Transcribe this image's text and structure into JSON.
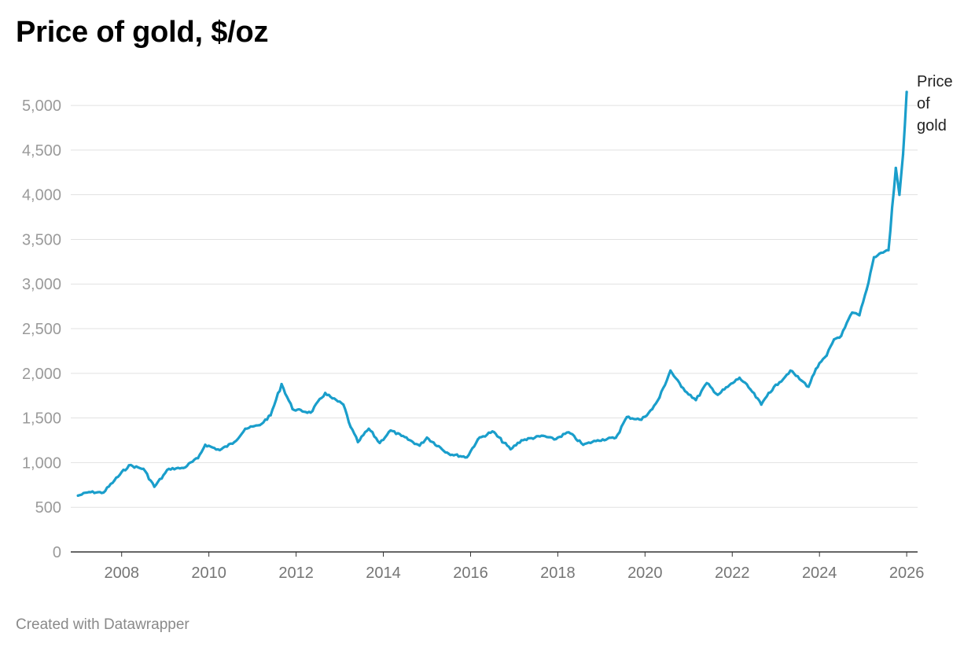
{
  "title": "Price of gold, $/oz",
  "footer": "Created with Datawrapper",
  "colors": {
    "line": "#1a9ecb",
    "grid": "#e1e1e1",
    "axis": "#333333"
  },
  "chart_data": {
    "type": "line",
    "title": "Price of gold, $/oz",
    "xlabel": "",
    "ylabel": "",
    "xlim": [
      "2006-11-01",
      "2026-04-01"
    ],
    "ylim": [
      0,
      5300
    ],
    "x_ticks": [
      "2008",
      "2010",
      "2012",
      "2014",
      "2016",
      "2018",
      "2020",
      "2022",
      "2024",
      "2026"
    ],
    "y_ticks": [
      {
        "value": 0,
        "label": "0"
      },
      {
        "value": 500,
        "label": "500"
      },
      {
        "value": 1000,
        "label": "1,000"
      },
      {
        "value": 1500,
        "label": "1,500"
      },
      {
        "value": 2000,
        "label": "2,000"
      },
      {
        "value": 2500,
        "label": "2,500"
      },
      {
        "value": 3000,
        "label": "3,000"
      },
      {
        "value": 3500,
        "label": "3,500"
      },
      {
        "value": 4000,
        "label": "4,000"
      },
      {
        "value": 4500,
        "label": "4,500"
      },
      {
        "value": 5000,
        "label": "5,000"
      }
    ],
    "grid": true,
    "legend": "direct label at line end",
    "series": [
      {
        "name": "Price of gold",
        "label_lines": [
          "Price",
          "of",
          "gold"
        ],
        "x": [
          "2007-01",
          "2007-04",
          "2007-08",
          "2007-11",
          "2008-03",
          "2008-07",
          "2008-10",
          "2009-02",
          "2009-06",
          "2009-10",
          "2009-12",
          "2010-04",
          "2010-08",
          "2010-11",
          "2011-03",
          "2011-06",
          "2011-09",
          "2011-12",
          "2012-05",
          "2012-09",
          "2012-11",
          "2013-02",
          "2013-04",
          "2013-06",
          "2013-09",
          "2013-12",
          "2014-03",
          "2014-06",
          "2014-11",
          "2015-01",
          "2015-07",
          "2015-12",
          "2016-03",
          "2016-07",
          "2016-12",
          "2017-03",
          "2017-09",
          "2017-12",
          "2018-04",
          "2018-08",
          "2018-12",
          "2019-05",
          "2019-08",
          "2019-12",
          "2020-03",
          "2020-05",
          "2020-08",
          "2020-11",
          "2021-03",
          "2021-06",
          "2021-09",
          "2022-03",
          "2022-06",
          "2022-09",
          "2022-11",
          "2023-02",
          "2023-05",
          "2023-08",
          "2023-10",
          "2023-12",
          "2024-03",
          "2024-05",
          "2024-07",
          "2024-10",
          "2024-12",
          "2025-02",
          "2025-04",
          "2025-06",
          "2025-08",
          "2025-10",
          "2025-11",
          "2025-12",
          "2026-01"
        ],
        "values": [
          630,
          670,
          665,
          800,
          970,
          930,
          730,
          930,
          940,
          1050,
          1200,
          1140,
          1230,
          1380,
          1420,
          1530,
          1880,
          1600,
          1560,
          1780,
          1720,
          1650,
          1400,
          1230,
          1380,
          1220,
          1360,
          1300,
          1190,
          1280,
          1100,
          1060,
          1260,
          1350,
          1150,
          1250,
          1300,
          1260,
          1340,
          1200,
          1250,
          1280,
          1510,
          1480,
          1600,
          1730,
          2030,
          1850,
          1700,
          1890,
          1760,
          1950,
          1820,
          1650,
          1780,
          1900,
          2030,
          1920,
          1850,
          2050,
          2200,
          2380,
          2420,
          2680,
          2650,
          2940,
          3300,
          3350,
          3380,
          4300,
          4000,
          4450,
          5150
        ]
      }
    ]
  }
}
